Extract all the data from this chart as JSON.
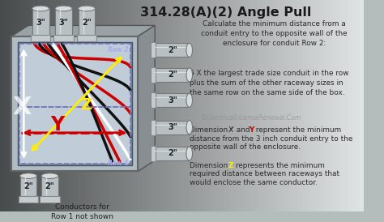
{
  "title": "314.28(A)(2) Angle Pull",
  "bg_gradient_left": "#a8b0b4",
  "bg_gradient_right": "#c8d0d4",
  "text_color": "#222222",
  "text_right_color": "#2a2a2a",
  "row2_label": "Row 2",
  "row1_label": "Row 1",
  "x_color": "#ffffff",
  "y_color": "#cc0000",
  "z_color": "#ffee00",
  "dashed_color": "#8888bb",
  "conduit_top": [
    "3\"",
    "3\"",
    "2\""
  ],
  "conduit_right": [
    "2\"",
    "2\"",
    "3\"",
    "3\"",
    "2\""
  ],
  "conduit_bottom": [
    "2\"",
    "2\""
  ],
  "text1": "Calculate the minimum distance from a\nconduit entry to the opposite wall of the\nenclosure for conduit Row 2:",
  "text2": "6 X the largest trade size conduit in the row\nplus the sum of the other raceway sizes in\nthe same row on the same side of the box.",
  "watermark": "©ElectricalLicenseRenewal.Com",
  "text3_pre": "Dimension ",
  "text3_x": "X̸",
  "text3_mid": " and ",
  "text3_y": "Y",
  "text3_post": " represent the minimum\ndistance from the 3 inch conduit entry to the\nopposite wall of the enclosure.",
  "text4_pre": "Dimension ",
  "text4_z": "Z",
  "text4_post": " represents the minimum\nrequired distance between raceways that\nwould enclose the same conductor.",
  "bottom_note": "Conductors for\nRow 1 not shown"
}
